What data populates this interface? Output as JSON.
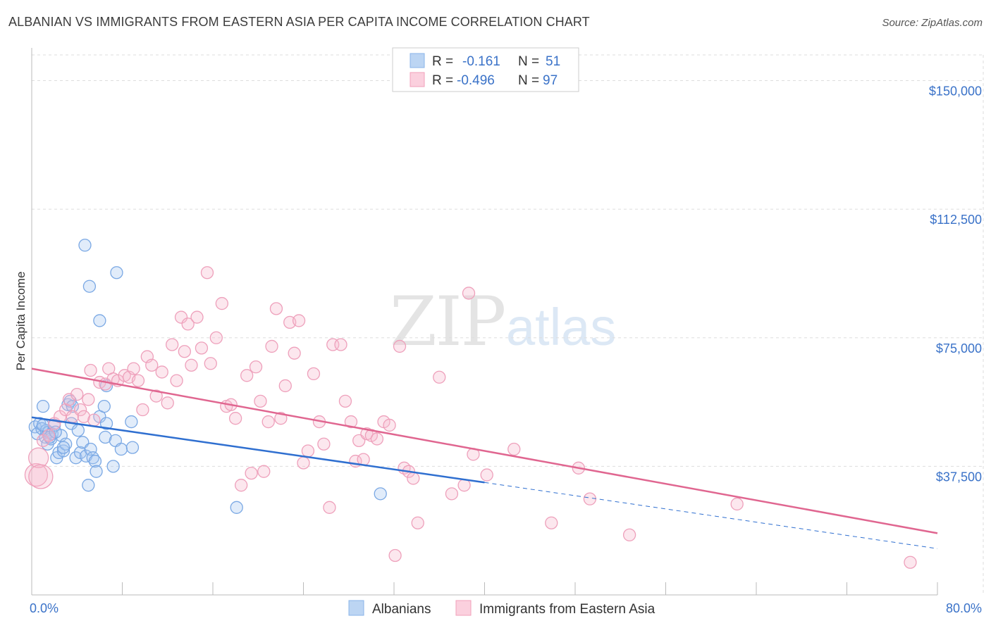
{
  "title": "ALBANIAN VS IMMIGRANTS FROM EASTERN ASIA PER CAPITA INCOME CORRELATION CHART",
  "source": "Source: ZipAtlas.com",
  "watermark": {
    "zip": "ZIP",
    "atlas": "atlas"
  },
  "legend": {
    "rows": [
      {
        "r_label": "R =",
        "r_value": "-0.161",
        "n_label": "N =",
        "n_value": "51",
        "color": "#8ab4e8"
      },
      {
        "r_label": "R =",
        "r_value": "-0.496",
        "n_label": "N =",
        "n_value": "97",
        "color": "#f2a0bb"
      }
    ]
  },
  "bottom_legend": [
    "Albanians",
    "Immigrants from Eastern Asia"
  ],
  "chart_data": {
    "type": "scatter",
    "title": "ALBANIAN VS IMMIGRANTS FROM EASTERN ASIA PER CAPITA INCOME CORRELATION CHART",
    "xlabel": "",
    "ylabel": "Per Capita Income",
    "xlim": [
      0,
      80
    ],
    "ylim": [
      0,
      157500
    ],
    "x_tick_labels": [
      "0.0%",
      "80.0%"
    ],
    "y_ticks": [
      37500,
      75000,
      112500,
      150000
    ],
    "y_tick_labels": [
      "$37,500",
      "$75,000",
      "$112,500",
      "$150,000"
    ],
    "grid": true,
    "legend_position": "top-center",
    "series": [
      {
        "name": "Albanians",
        "color": "#8ab4e8",
        "trend_color": "#2f6fd0",
        "trend": {
          "x0": 0,
          "y0": 51800,
          "x1": 40,
          "y1": 32800,
          "dashed_to": 80,
          "dashed_y": 13500
        },
        "points": [
          [
            0.3,
            49000
          ],
          [
            0.5,
            47000
          ],
          [
            0.7,
            50000
          ],
          [
            0.9,
            48500
          ],
          [
            1.0,
            55000
          ],
          [
            1.2,
            46000
          ],
          [
            1.3,
            48000
          ],
          [
            1.4,
            44000
          ],
          [
            1.5,
            47500
          ],
          [
            1.7,
            45500
          ],
          [
            1.8,
            47000
          ],
          [
            2.0,
            49500
          ],
          [
            2.2,
            40000
          ],
          [
            2.4,
            41500
          ],
          [
            2.6,
            46500
          ],
          [
            2.8,
            42000
          ],
          [
            3.0,
            44000
          ],
          [
            3.2,
            55500
          ],
          [
            3.4,
            56500
          ],
          [
            3.5,
            50000
          ],
          [
            3.6,
            55000
          ],
          [
            3.9,
            40000
          ],
          [
            4.1,
            48000
          ],
          [
            4.3,
            41500
          ],
          [
            4.5,
            44500
          ],
          [
            4.8,
            40500
          ],
          [
            5.0,
            32000
          ],
          [
            5.2,
            42500
          ],
          [
            5.4,
            40000
          ],
          [
            5.6,
            39000
          ],
          [
            5.7,
            36000
          ],
          [
            6.0,
            52000
          ],
          [
            6.4,
            55000
          ],
          [
            6.5,
            46000
          ],
          [
            6.6,
            50000
          ],
          [
            7.2,
            37500
          ],
          [
            7.4,
            45000
          ],
          [
            7.9,
            42500
          ],
          [
            8.9,
            43000
          ],
          [
            8.8,
            50500
          ],
          [
            4.7,
            102000
          ],
          [
            5.1,
            90000
          ],
          [
            6.0,
            80000
          ],
          [
            7.5,
            94000
          ],
          [
            6.6,
            61000
          ],
          [
            2.8,
            43000
          ],
          [
            18.1,
            25500
          ],
          [
            30.8,
            29500
          ],
          [
            1.0,
            49500
          ],
          [
            1.6,
            46000
          ],
          [
            2.1,
            47500
          ]
        ]
      },
      {
        "name": "Immigrants from Eastern Asia",
        "color": "#f2a0bb",
        "trend_color": "#e06690",
        "trend": {
          "x0": 0,
          "y0": 66000,
          "x1": 80,
          "y1": 18000
        },
        "points": [
          [
            0.4,
            35000
          ],
          [
            0.6,
            40000
          ],
          [
            1.0,
            45000
          ],
          [
            1.5,
            46500
          ],
          [
            2.0,
            50000
          ],
          [
            2.5,
            52000
          ],
          [
            3.0,
            54000
          ],
          [
            3.3,
            57000
          ],
          [
            3.6,
            52000
          ],
          [
            4.0,
            58500
          ],
          [
            4.3,
            54000
          ],
          [
            4.6,
            52000
          ],
          [
            5.0,
            57000
          ],
          [
            5.5,
            51000
          ],
          [
            5.2,
            65500
          ],
          [
            6.0,
            62000
          ],
          [
            6.5,
            61500
          ],
          [
            6.8,
            66000
          ],
          [
            7.2,
            63000
          ],
          [
            7.6,
            62500
          ],
          [
            8.2,
            64000
          ],
          [
            8.6,
            63500
          ],
          [
            9.0,
            66000
          ],
          [
            9.4,
            62500
          ],
          [
            9.8,
            54000
          ],
          [
            10.2,
            69500
          ],
          [
            10.6,
            67000
          ],
          [
            11.0,
            58000
          ],
          [
            11.5,
            65000
          ],
          [
            12.0,
            56000
          ],
          [
            12.4,
            73000
          ],
          [
            12.8,
            62500
          ],
          [
            13.2,
            81000
          ],
          [
            13.5,
            71000
          ],
          [
            13.8,
            79000
          ],
          [
            14.1,
            67000
          ],
          [
            14.6,
            81000
          ],
          [
            15.0,
            72000
          ],
          [
            15.5,
            94000
          ],
          [
            15.8,
            67500
          ],
          [
            16.3,
            75000
          ],
          [
            16.8,
            85000
          ],
          [
            17.2,
            55000
          ],
          [
            17.6,
            55500
          ],
          [
            18.0,
            51500
          ],
          [
            18.5,
            32000
          ],
          [
            19.0,
            64000
          ],
          [
            19.4,
            35500
          ],
          [
            19.8,
            66500
          ],
          [
            20.2,
            56500
          ],
          [
            20.5,
            36000
          ],
          [
            20.9,
            50500
          ],
          [
            21.2,
            72500
          ],
          [
            21.6,
            83500
          ],
          [
            22.0,
            51500
          ],
          [
            22.4,
            61000
          ],
          [
            22.8,
            79500
          ],
          [
            23.2,
            70500
          ],
          [
            23.6,
            80000
          ],
          [
            24.0,
            38500
          ],
          [
            24.4,
            42000
          ],
          [
            24.9,
            64500
          ],
          [
            25.4,
            50500
          ],
          [
            25.8,
            44000
          ],
          [
            26.3,
            25500
          ],
          [
            26.6,
            73000
          ],
          [
            27.3,
            73000
          ],
          [
            27.7,
            56500
          ],
          [
            28.2,
            50500
          ],
          [
            28.6,
            39000
          ],
          [
            28.9,
            45000
          ],
          [
            29.3,
            39500
          ],
          [
            29.6,
            47000
          ],
          [
            30.0,
            46500
          ],
          [
            30.5,
            45500
          ],
          [
            31.1,
            50500
          ],
          [
            31.6,
            49500
          ],
          [
            32.1,
            11500
          ],
          [
            32.5,
            72500
          ],
          [
            32.9,
            37000
          ],
          [
            33.3,
            36000
          ],
          [
            33.7,
            34000
          ],
          [
            34.1,
            21000
          ],
          [
            36.0,
            63500
          ],
          [
            37.1,
            29500
          ],
          [
            38.2,
            32000
          ],
          [
            38.6,
            88000
          ],
          [
            39.0,
            41000
          ],
          [
            40.2,
            35000
          ],
          [
            42.6,
            42500
          ],
          [
            45.9,
            21000
          ],
          [
            48.3,
            37000
          ],
          [
            49.3,
            28000
          ],
          [
            52.8,
            17500
          ],
          [
            62.3,
            26500
          ],
          [
            77.6,
            9500
          ],
          [
            0.8,
            34500
          ]
        ]
      }
    ]
  }
}
